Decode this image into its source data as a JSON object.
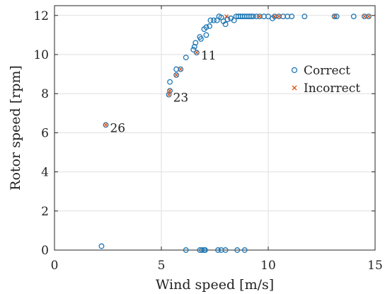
{
  "chart_data": {
    "type": "scatter",
    "xlabel": "Wind speed [m/s]",
    "ylabel": "Rotor speed [rpm]",
    "xlim": [
      0,
      15
    ],
    "ylim": [
      0,
      12.5
    ],
    "xticks": [
      0,
      5,
      10,
      15
    ],
    "yticks": [
      0,
      2,
      4,
      6,
      8,
      10,
      12
    ],
    "grid": true,
    "legend_position": "right",
    "colors": {
      "Correct": "#1f77b4",
      "Incorrect": "#d95319"
    },
    "series": [
      {
        "name": "Correct",
        "marker": "circle",
        "points": [
          [
            2.2,
            0.2
          ],
          [
            6.15,
            0.0
          ],
          [
            6.8,
            0.0
          ],
          [
            6.9,
            0.0
          ],
          [
            7.0,
            0.0
          ],
          [
            7.05,
            0.0
          ],
          [
            7.65,
            0.0
          ],
          [
            7.8,
            0.0
          ],
          [
            8.0,
            0.0
          ],
          [
            8.55,
            0.0
          ],
          [
            8.9,
            0.0
          ],
          [
            2.4,
            6.4
          ],
          [
            5.35,
            7.95
          ],
          [
            5.4,
            8.15
          ],
          [
            5.4,
            8.6
          ],
          [
            5.7,
            8.95
          ],
          [
            5.7,
            9.25
          ],
          [
            5.9,
            9.25
          ],
          [
            6.15,
            9.85
          ],
          [
            6.5,
            10.25
          ],
          [
            6.55,
            10.4
          ],
          [
            6.6,
            10.6
          ],
          [
            6.65,
            10.1
          ],
          [
            6.8,
            10.9
          ],
          [
            6.85,
            10.8
          ],
          [
            7.0,
            11.3
          ],
          [
            7.1,
            11.4
          ],
          [
            7.1,
            11.0
          ],
          [
            7.25,
            11.45
          ],
          [
            7.3,
            11.75
          ],
          [
            7.45,
            11.75
          ],
          [
            7.6,
            11.75
          ],
          [
            7.7,
            11.95
          ],
          [
            7.8,
            11.9
          ],
          [
            7.9,
            11.7
          ],
          [
            8.0,
            11.55
          ],
          [
            8.1,
            11.8
          ],
          [
            8.25,
            11.85
          ],
          [
            8.4,
            11.75
          ],
          [
            8.5,
            11.95
          ],
          [
            8.6,
            11.95
          ],
          [
            8.7,
            11.95
          ],
          [
            8.8,
            11.95
          ],
          [
            8.9,
            11.95
          ],
          [
            9.0,
            11.95
          ],
          [
            9.1,
            11.95
          ],
          [
            9.2,
            11.95
          ],
          [
            9.3,
            11.95
          ],
          [
            9.45,
            11.95
          ],
          [
            9.6,
            11.95
          ],
          [
            9.8,
            11.95
          ],
          [
            10.0,
            11.95
          ],
          [
            10.2,
            11.85
          ],
          [
            10.3,
            11.95
          ],
          [
            10.5,
            11.95
          ],
          [
            10.7,
            11.95
          ],
          [
            10.9,
            11.95
          ],
          [
            11.1,
            11.95
          ],
          [
            11.7,
            11.95
          ],
          [
            13.1,
            11.95
          ],
          [
            13.2,
            11.95
          ],
          [
            14.0,
            11.95
          ],
          [
            14.5,
            11.95
          ],
          [
            14.7,
            11.95
          ]
        ]
      },
      {
        "name": "Incorrect",
        "marker": "x",
        "points": [
          [
            2.4,
            6.4
          ],
          [
            5.35,
            7.95
          ],
          [
            5.4,
            8.15
          ],
          [
            5.7,
            8.95
          ],
          [
            5.9,
            9.25
          ],
          [
            6.65,
            10.1
          ],
          [
            8.05,
            11.95
          ],
          [
            9.6,
            11.95
          ],
          [
            10.3,
            11.95
          ],
          [
            10.5,
            11.95
          ],
          [
            13.1,
            11.95
          ],
          [
            14.5,
            11.95
          ],
          [
            14.7,
            11.95
          ]
        ]
      }
    ],
    "annotations": [
      {
        "text": "26",
        "x": 2.4,
        "y": 6.4
      },
      {
        "text": "23",
        "x": 5.35,
        "y": 7.95
      },
      {
        "text": "11",
        "x": 6.65,
        "y": 10.1
      }
    ]
  }
}
